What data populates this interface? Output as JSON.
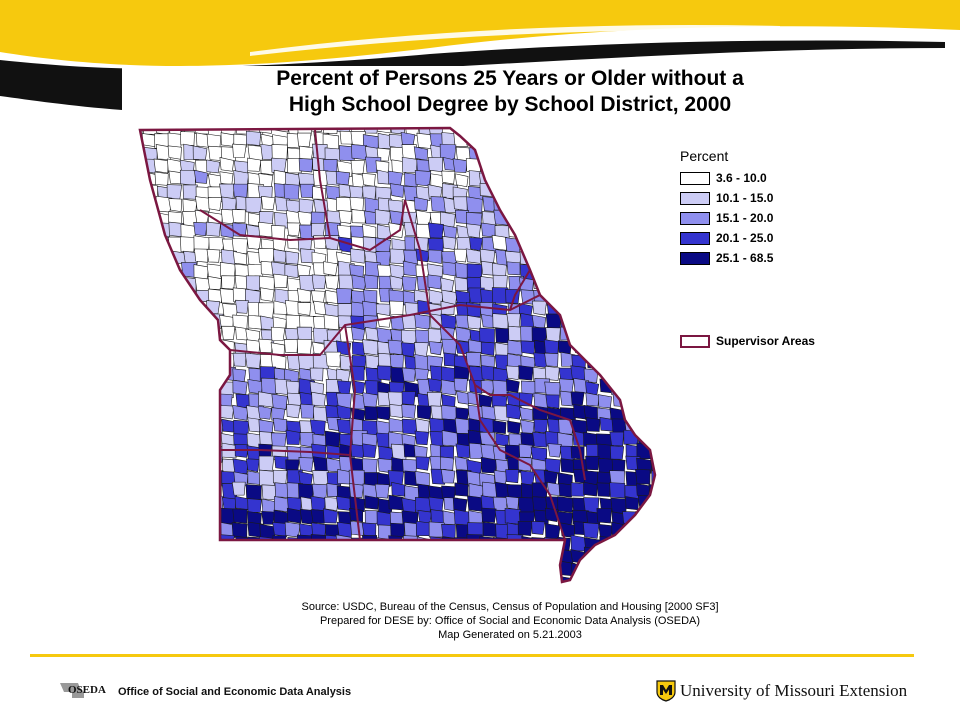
{
  "title": {
    "line1": "Percent of Persons 25 Years or Older without a",
    "line2": "High School Degree by School District, 2000"
  },
  "legend": {
    "title": "Percent",
    "classes": [
      {
        "label": "3.6 - 10.0",
        "color": "#ffffff"
      },
      {
        "label": "10.1 - 15.0",
        "color": "#ccccf5"
      },
      {
        "label": "15.1 - 20.0",
        "color": "#8f8fee"
      },
      {
        "label": "20.1 - 25.0",
        "color": "#3434cf"
      },
      {
        "label": "25.1 - 68.5",
        "color": "#0a0a84"
      }
    ],
    "supervisor_label": "Supervisor Areas",
    "supervisor_color": "#7b1741"
  },
  "source": {
    "line1": "Source:  USDC, Bureau of the Census, Census of Population and Housing [2000 SF3]",
    "line2": "Prepared for DESE by: Office of Social and Economic Data Analysis (OSEDA)",
    "line3": "Map Generated on 5.21.2003"
  },
  "footer": {
    "oseda_logo_text": "OSEDA",
    "oseda_name": "Office of Social and Economic Data Analysis",
    "um_name": "University of Missouri Extension"
  },
  "colors": {
    "accent_yellow": "#f6c90e",
    "banner_dark": "#111111"
  }
}
